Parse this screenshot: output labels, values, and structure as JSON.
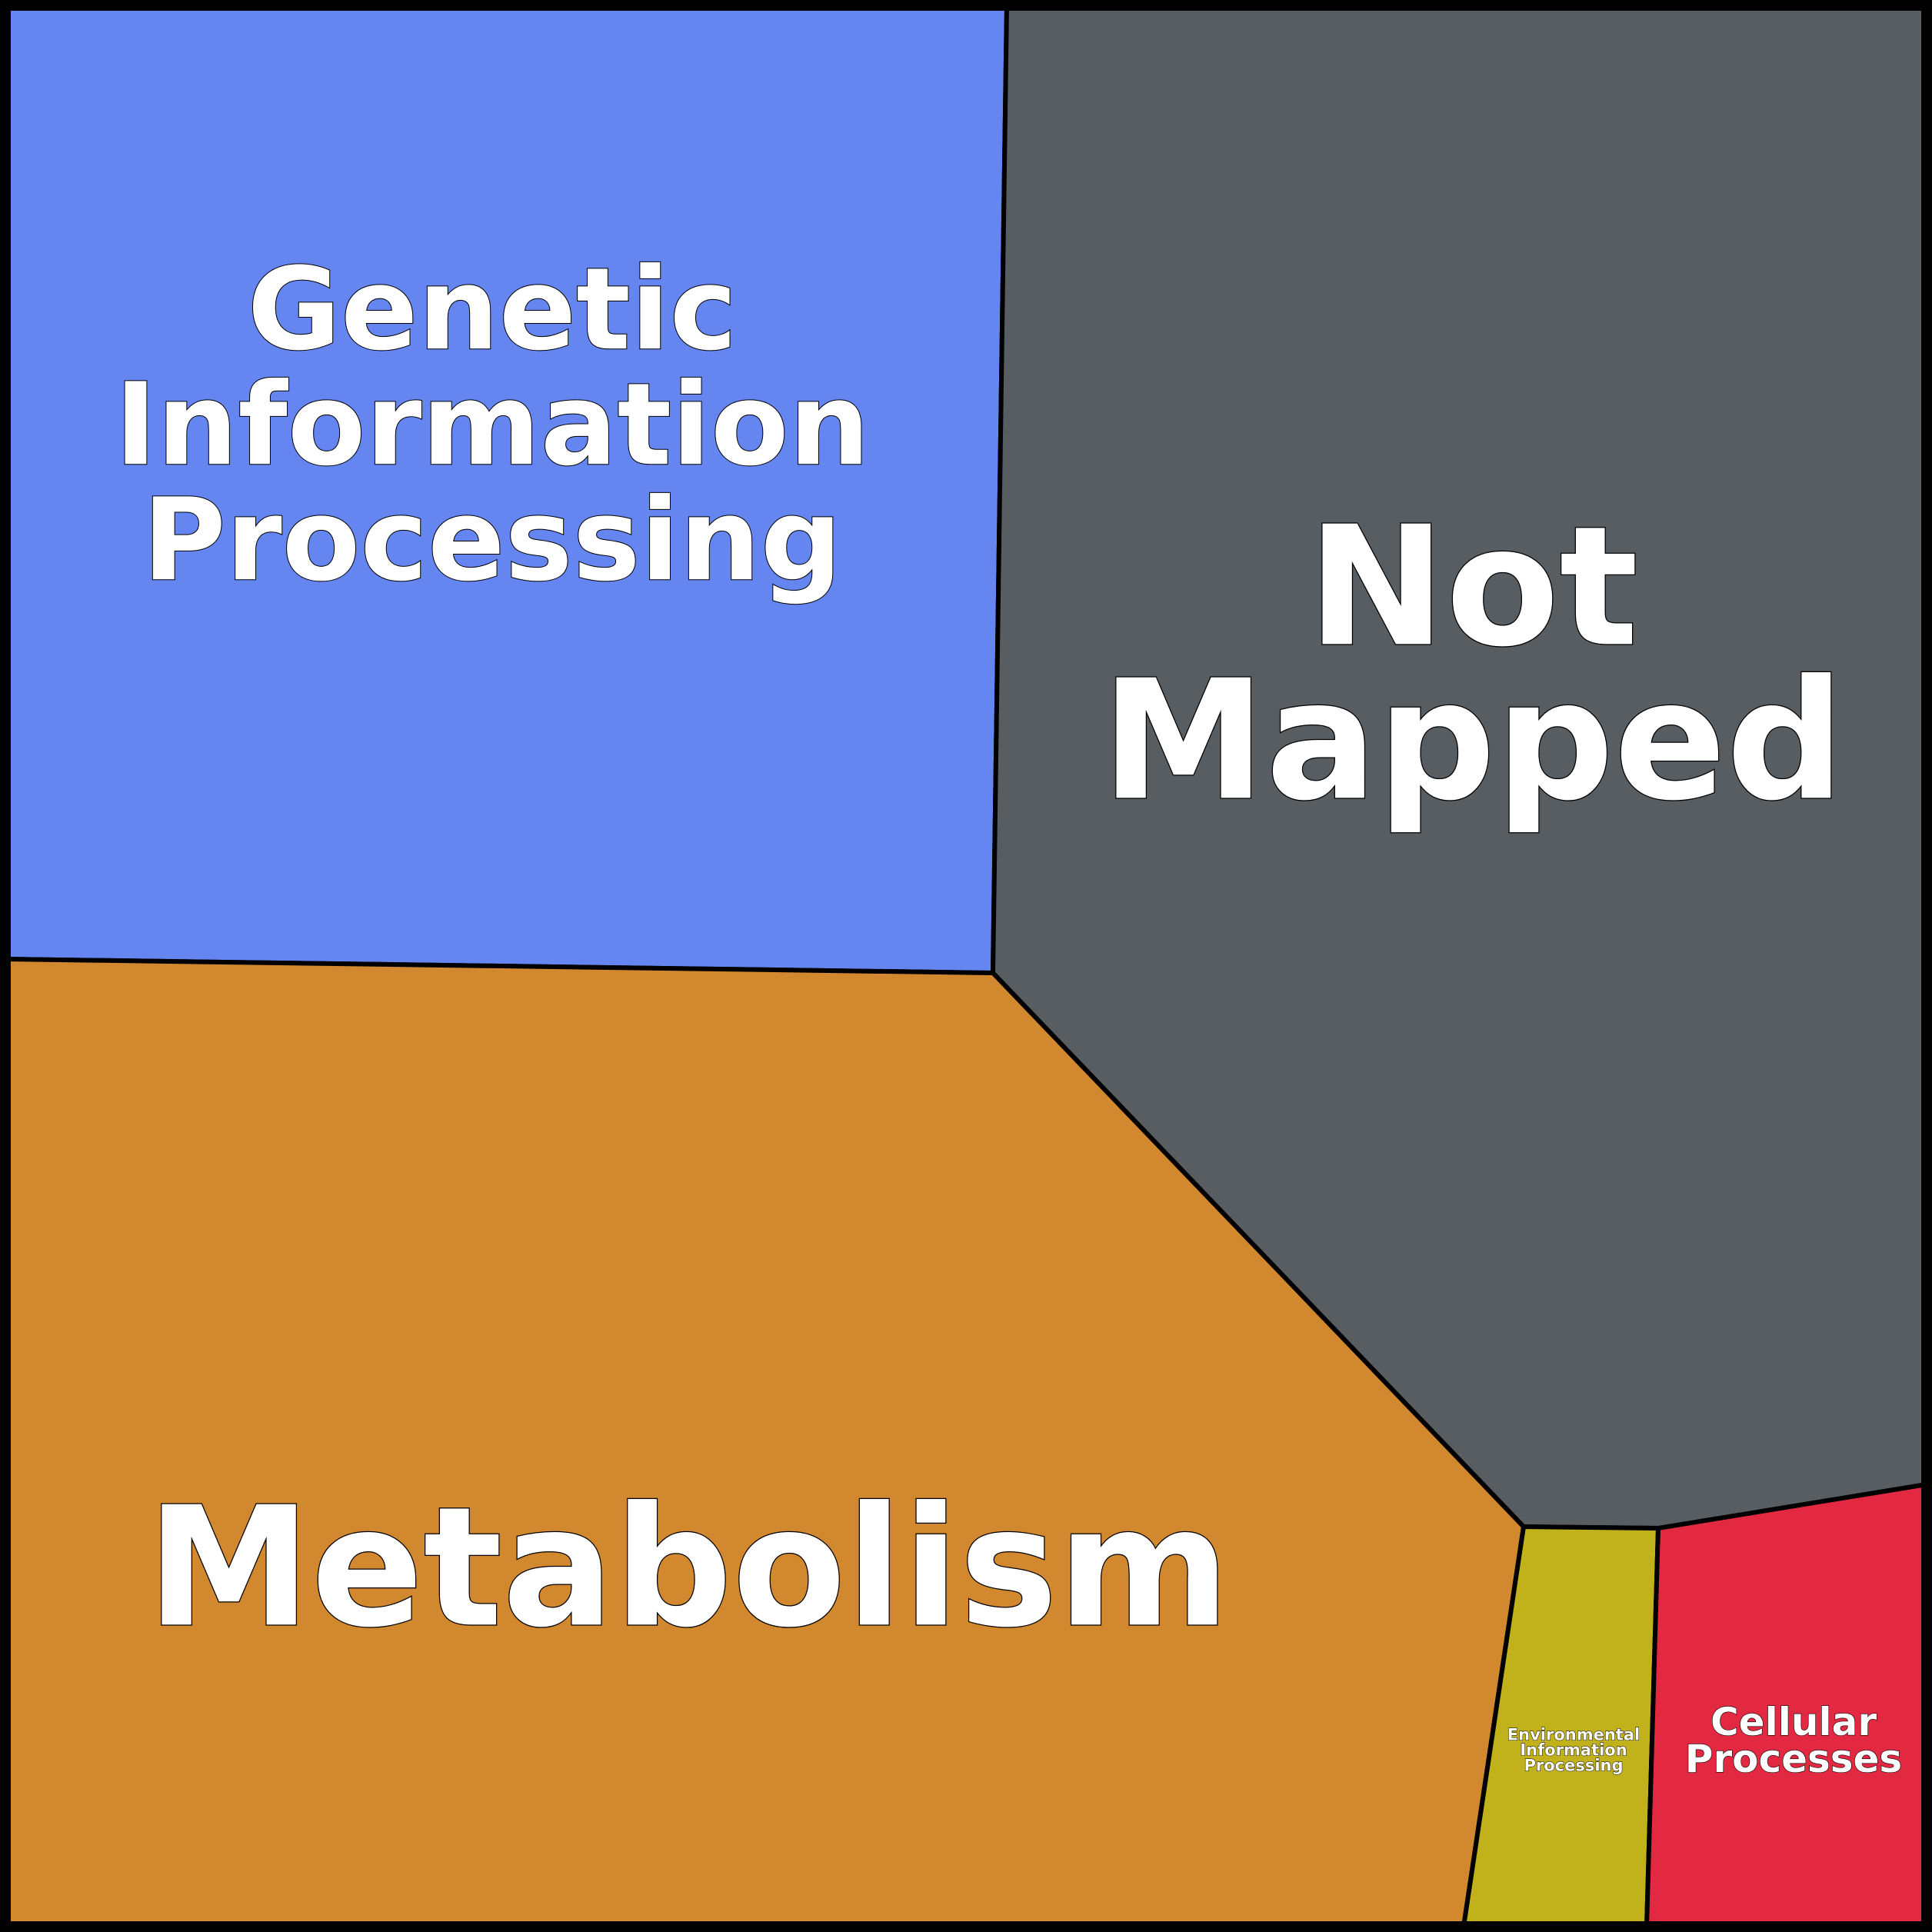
{
  "chart_data": {
    "type": "voronoi-treemap",
    "cells": [
      {
        "name": "Genetic Information Processing",
        "lines": [
          "Genetic",
          "Information",
          "Processing"
        ],
        "color": "#6585f1"
      },
      {
        "name": "Not Mapped",
        "lines": [
          "Not",
          "Mapped"
        ],
        "color": "#585d62"
      },
      {
        "name": "Metabolism",
        "lines": [
          "Metabolism"
        ],
        "color": "#d2882e"
      },
      {
        "name": "Environmental Information Processing",
        "lines": [
          "Environmental",
          "Information",
          "Processing"
        ],
        "color": "#c1b11b"
      },
      {
        "name": "Cellular Processes",
        "lines": [
          "Cellular",
          "Processes"
        ],
        "color": "#e32841"
      }
    ]
  }
}
